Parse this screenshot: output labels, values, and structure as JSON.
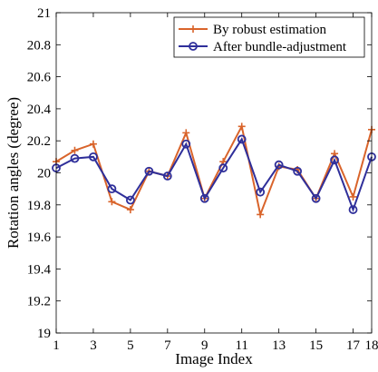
{
  "chart_data": {
    "type": "line",
    "xlabel": "Image Index",
    "ylabel": "Rotation angles (degree)",
    "xlim": [
      1,
      18
    ],
    "ylim": [
      19,
      21
    ],
    "x_ticks": [
      1,
      3,
      5,
      7,
      9,
      11,
      13,
      15,
      17,
      18
    ],
    "y_ticks": [
      19,
      19.2,
      19.4,
      19.6,
      19.8,
      20,
      20.2,
      20.4,
      20.6,
      20.8,
      21
    ],
    "y_tick_labels": [
      "19",
      "19.2",
      "19.4",
      "19.6",
      "19.8",
      "20",
      "20.2",
      "20.4",
      "20.6",
      "20.8",
      "21"
    ],
    "grid": false,
    "legend_position": "top-right",
    "x": [
      1,
      2,
      3,
      4,
      5,
      6,
      7,
      8,
      9,
      10,
      11,
      12,
      13,
      14,
      15,
      16,
      17,
      18
    ],
    "series": [
      {
        "name": "By robust estimation",
        "color": "#d9642b",
        "marker": "plus",
        "values": [
          20.07,
          20.14,
          20.18,
          19.82,
          19.77,
          20.01,
          19.98,
          20.25,
          19.84,
          20.07,
          20.29,
          19.74,
          20.04,
          20.02,
          19.84,
          20.12,
          19.85,
          20.27
        ]
      },
      {
        "name": "After bundle-adjustment",
        "color": "#2f2f9a",
        "marker": "circle",
        "values": [
          20.03,
          20.09,
          20.1,
          19.9,
          19.83,
          20.01,
          19.98,
          20.18,
          19.84,
          20.03,
          20.21,
          19.88,
          20.05,
          20.01,
          19.84,
          20.08,
          19.77,
          20.1
        ]
      }
    ]
  }
}
